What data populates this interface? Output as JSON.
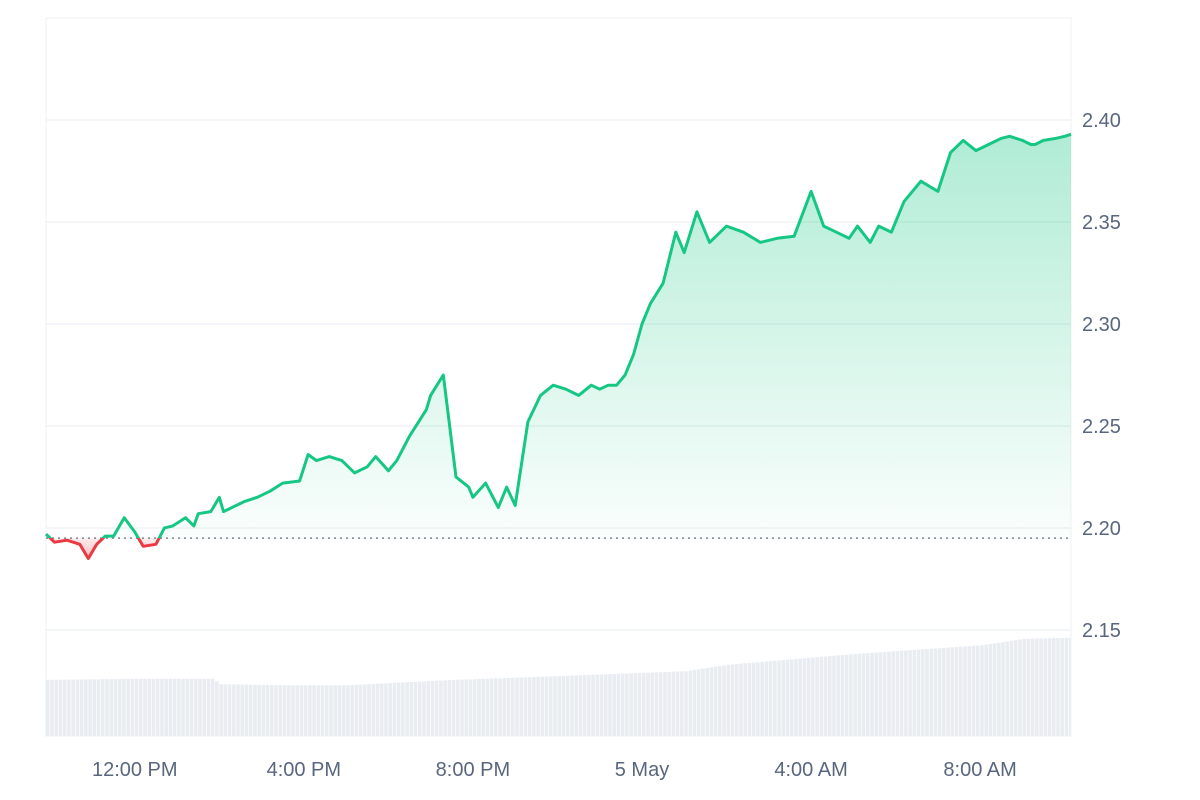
{
  "chart_data": {
    "type": "area",
    "title": "",
    "xlabel": "",
    "ylabel": "",
    "x_ticks": [
      "12:00 PM",
      "4:00 PM",
      "8:00 PM",
      "5 May",
      "4:00 AM",
      "8:00 AM"
    ],
    "y_ticks": [
      2.15,
      2.2,
      2.25,
      2.3,
      2.35,
      2.4
    ],
    "y_tick_labels": [
      "2.15",
      "2.20",
      "2.25",
      "2.30",
      "2.35",
      "2.40"
    ],
    "x_range_hours": [
      -2.1,
      22.15
    ],
    "ylim": [
      2.098,
      2.45
    ],
    "baseline": 2.195,
    "grid": true,
    "legend": "none",
    "colors": {
      "up_line": "#16c784",
      "down_line": "#ea3943",
      "up_fill": "#16c784",
      "down_fill": "#ea3943",
      "grid": "#eff2f5",
      "baseline": "#7a8290",
      "volume": "#e9edf2"
    },
    "series": [
      {
        "name": "Price",
        "x": [
          -2.1,
          -1.9,
          -1.6,
          -1.3,
          -1.1,
          -0.9,
          -0.7,
          -0.5,
          -0.25,
          0.0,
          0.2,
          0.5,
          0.7,
          0.9,
          1.2,
          1.4,
          1.5,
          1.8,
          2.0,
          2.1,
          2.3,
          2.6,
          2.9,
          3.2,
          3.5,
          3.9,
          4.1,
          4.3,
          4.6,
          4.9,
          5.2,
          5.5,
          5.7,
          6.0,
          6.2,
          6.5,
          6.9,
          7.0,
          7.3,
          7.6,
          7.9,
          8.0,
          8.3,
          8.6,
          8.8,
          9.0,
          9.3,
          9.6,
          9.9,
          10.2,
          10.5,
          10.8,
          11.0,
          11.2,
          11.4,
          11.6,
          11.8,
          12.0,
          12.2,
          12.5,
          12.8,
          13.0,
          13.3,
          13.6,
          14.0,
          14.4,
          14.8,
          15.2,
          15.6,
          16.0,
          16.3,
          16.6,
          16.9,
          17.1,
          17.4,
          17.6,
          17.9,
          18.2,
          18.6,
          19.0,
          19.3,
          19.6,
          19.9,
          20.2,
          20.5,
          20.7,
          21.0,
          21.2,
          21.3,
          21.5,
          21.8,
          22.0,
          22.15
        ],
        "y": [
          2.197,
          2.193,
          2.194,
          2.192,
          2.185,
          2.192,
          2.196,
          2.196,
          2.205,
          2.198,
          2.191,
          2.192,
          2.2,
          2.201,
          2.205,
          2.201,
          2.207,
          2.208,
          2.215,
          2.208,
          2.21,
          2.213,
          2.215,
          2.218,
          2.222,
          2.223,
          2.236,
          2.233,
          2.235,
          2.233,
          2.227,
          2.23,
          2.235,
          2.228,
          2.233,
          2.245,
          2.258,
          2.265,
          2.275,
          2.225,
          2.22,
          2.215,
          2.222,
          2.21,
          2.22,
          2.211,
          2.252,
          2.265,
          2.27,
          2.268,
          2.265,
          2.27,
          2.268,
          2.27,
          2.27,
          2.275,
          2.285,
          2.3,
          2.31,
          2.32,
          2.345,
          2.335,
          2.355,
          2.34,
          2.348,
          2.345,
          2.34,
          2.342,
          2.343,
          2.365,
          2.348,
          2.345,
          2.342,
          2.348,
          2.34,
          2.348,
          2.345,
          2.36,
          2.37,
          2.365,
          2.384,
          2.39,
          2.385,
          2.388,
          2.391,
          2.392,
          2.39,
          2.388,
          2.388,
          2.39,
          2.391,
          2.392,
          2.393
        ]
      },
      {
        "name": "Volume",
        "x": [
          -2.1,
          0.0,
          1.8,
          2.0,
          3.5,
          5.0,
          6.5,
          7.5,
          9.0,
          11.0,
          13.0,
          14.0,
          15.5,
          17.0,
          18.5,
          20.0,
          21.0,
          22.15
        ],
        "y": [
          0.52,
          0.53,
          0.53,
          0.48,
          0.47,
          0.47,
          0.5,
          0.52,
          0.54,
          0.57,
          0.6,
          0.66,
          0.71,
          0.76,
          0.8,
          0.84,
          0.9,
          0.91
        ]
      }
    ]
  }
}
